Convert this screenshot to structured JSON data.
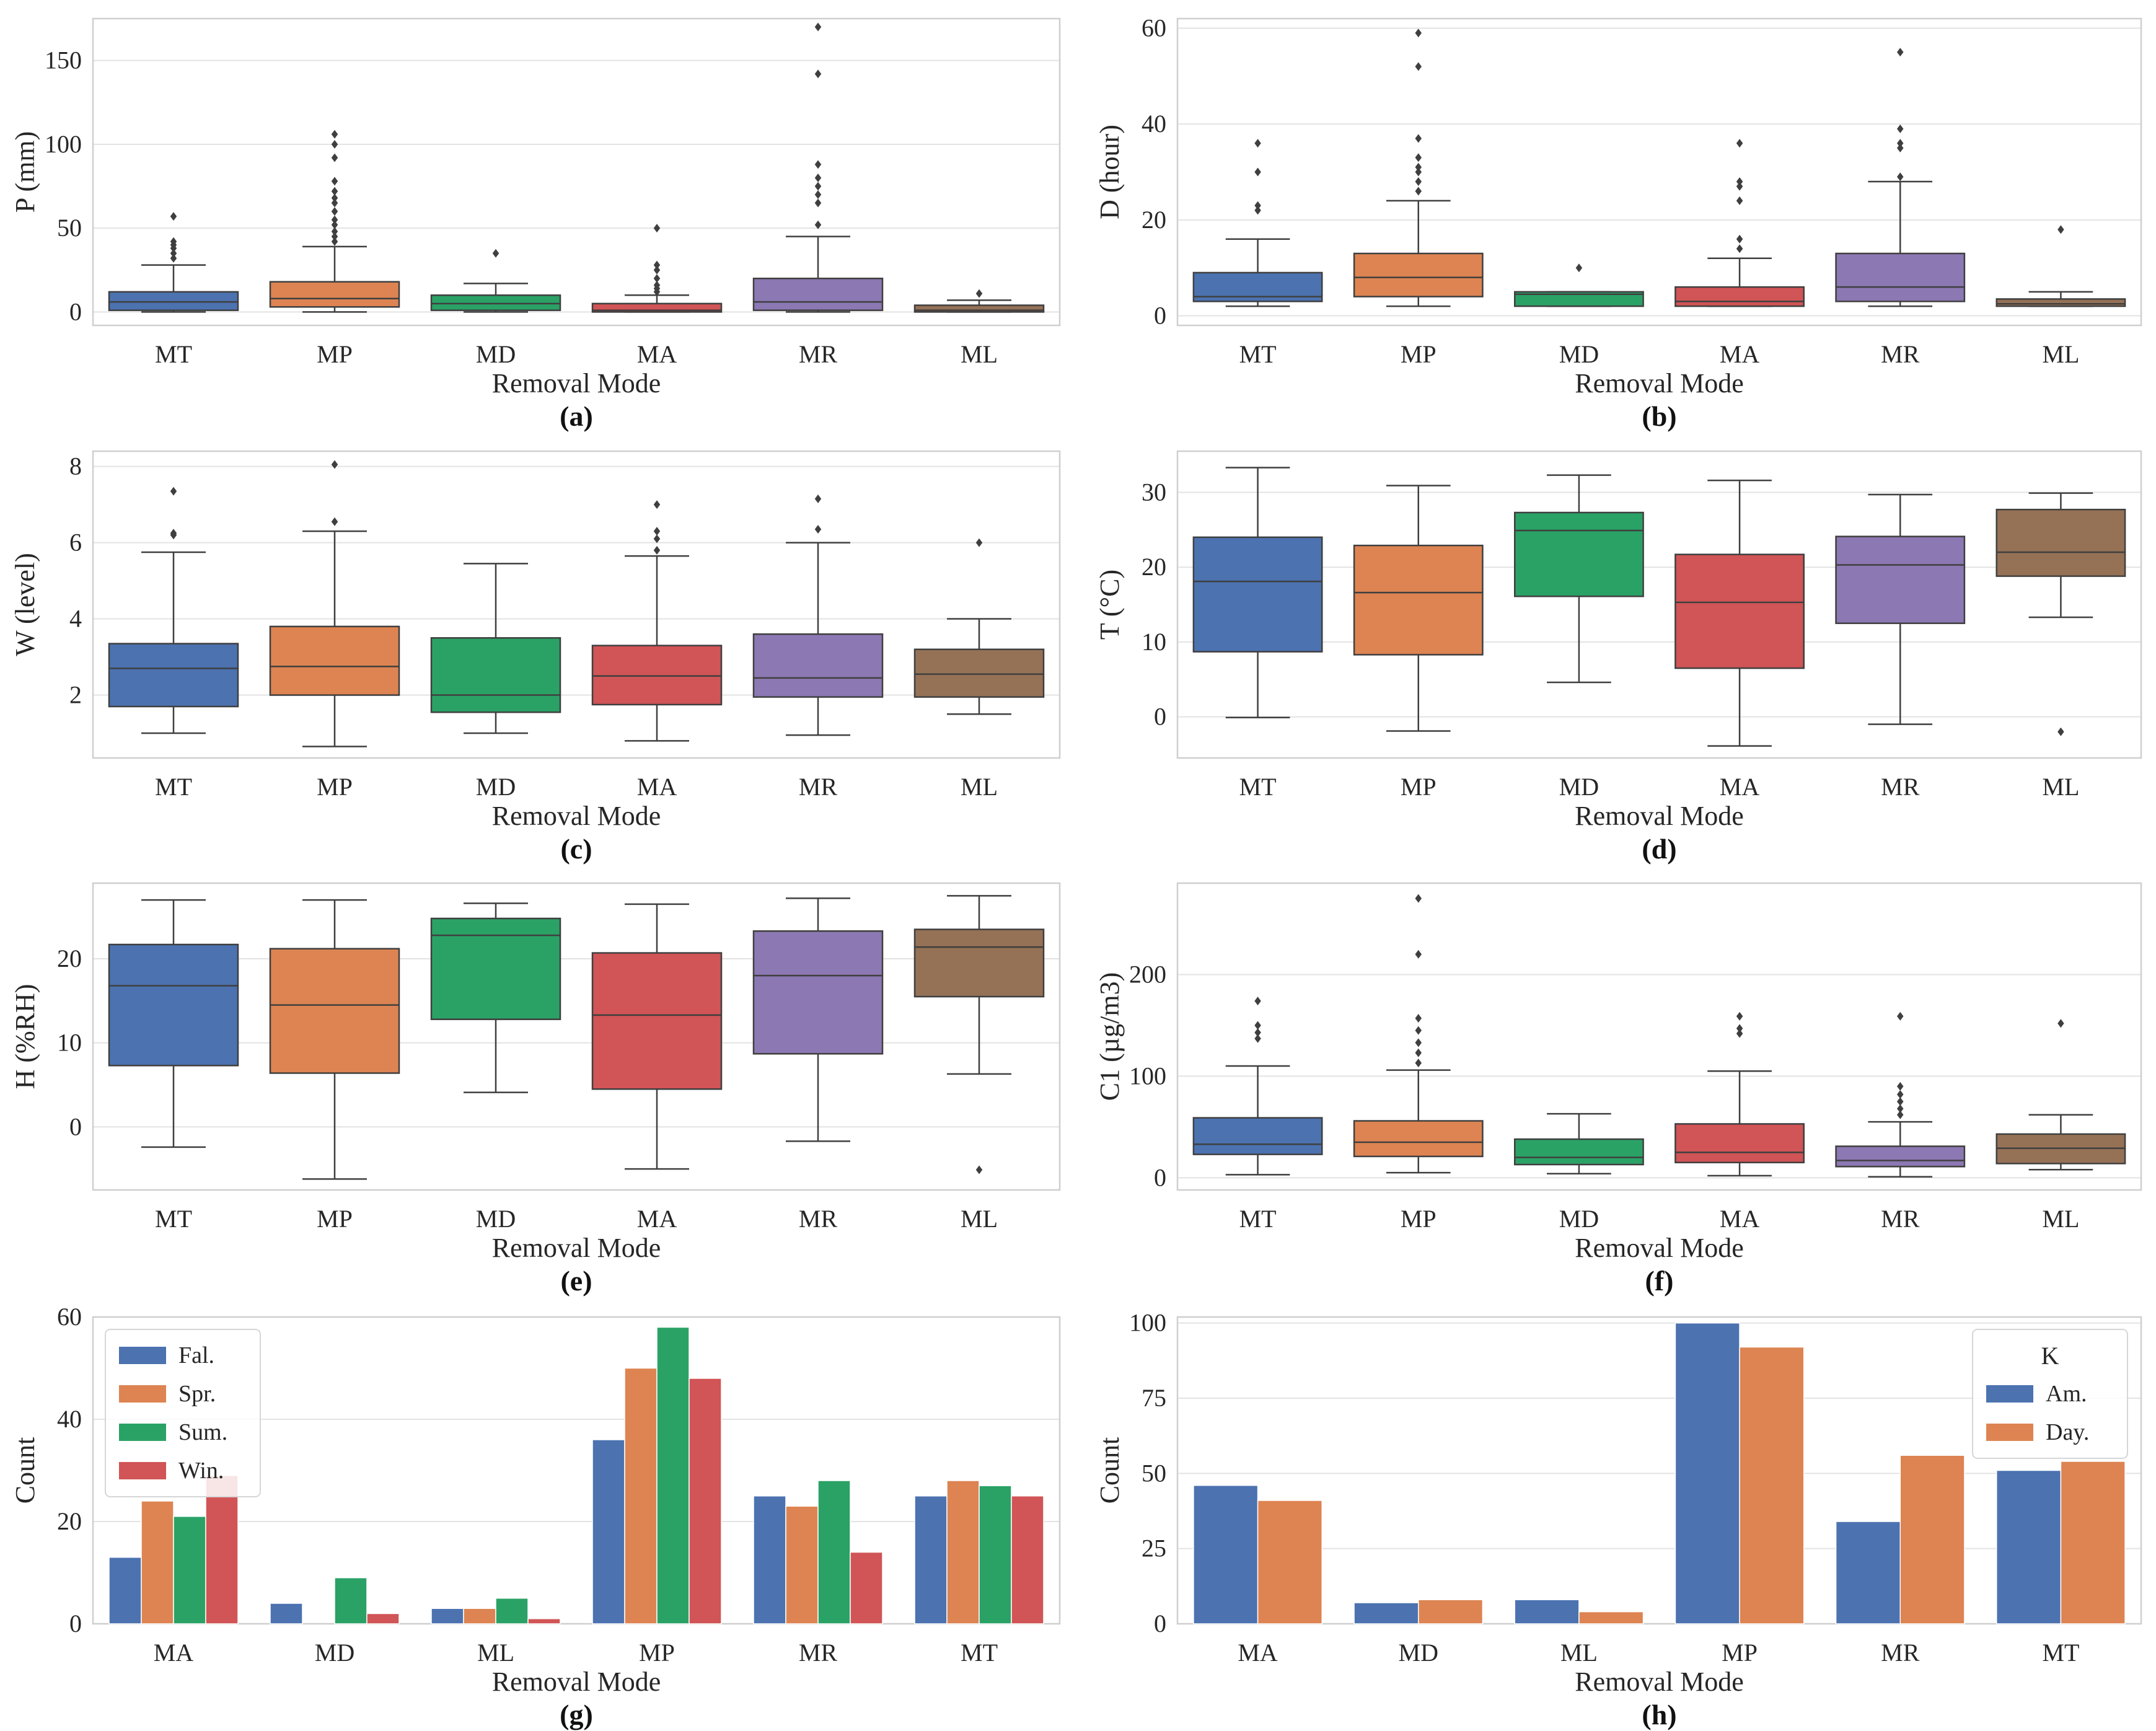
{
  "figure": {
    "xlabel": "Removal Mode"
  },
  "colors": {
    "MT": "#4c72b0",
    "MP": "#dd8452",
    "MD": "#2aa266",
    "MA": "#d15456",
    "MR": "#8c78b3",
    "ML": "#957156",
    "grid": "#e3e3e3",
    "frame": "#cfcfcf",
    "line": "#3f3f3f"
  },
  "chart_data": [
    {
      "id": "a",
      "tag": "(a)",
      "type": "box",
      "ylabel": "P (mm)",
      "xlabel": "Removal Mode",
      "ylim": [
        -8,
        175
      ],
      "yticks": [
        0,
        50,
        100,
        150
      ],
      "categories": [
        "MT",
        "MP",
        "MD",
        "MA",
        "MR",
        "ML"
      ],
      "boxes": [
        {
          "cat": "MT",
          "q1": 1,
          "median": 6,
          "q3": 12,
          "wlo": 0,
          "whi": 28,
          "outliers": [
            32,
            35,
            38,
            40,
            42,
            57
          ]
        },
        {
          "cat": "MP",
          "q1": 3,
          "median": 8,
          "q3": 18,
          "wlo": 0,
          "whi": 39,
          "outliers": [
            42,
            45,
            48,
            52,
            55,
            60,
            65,
            68,
            72,
            78,
            92,
            100,
            106
          ]
        },
        {
          "cat": "MD",
          "q1": 1,
          "median": 5,
          "q3": 10,
          "wlo": 0,
          "whi": 17,
          "outliers": [
            35
          ]
        },
        {
          "cat": "MA",
          "q1": 0,
          "median": 1,
          "q3": 5,
          "wlo": 0,
          "whi": 10,
          "outliers": [
            12,
            14,
            16,
            20,
            25,
            28,
            50
          ]
        },
        {
          "cat": "MR",
          "q1": 1,
          "median": 6,
          "q3": 20,
          "wlo": 0,
          "whi": 45,
          "outliers": [
            52,
            65,
            70,
            75,
            80,
            88,
            142,
            170
          ]
        },
        {
          "cat": "ML",
          "q1": 0,
          "median": 1,
          "q3": 4,
          "wlo": 0,
          "whi": 7,
          "outliers": [
            11
          ]
        }
      ]
    },
    {
      "id": "b",
      "tag": "(b)",
      "type": "box",
      "ylabel": "D (hour)",
      "xlabel": "Removal Mode",
      "ylim": [
        -2,
        62
      ],
      "yticks": [
        0,
        20,
        40,
        60
      ],
      "categories": [
        "MT",
        "MP",
        "MD",
        "MA",
        "MR",
        "ML"
      ],
      "boxes": [
        {
          "cat": "MT",
          "q1": 3,
          "median": 4,
          "q3": 9,
          "wlo": 2,
          "whi": 16,
          "outliers": [
            22,
            23,
            30,
            36
          ]
        },
        {
          "cat": "MP",
          "q1": 4,
          "median": 8,
          "q3": 13,
          "wlo": 2,
          "whi": 24,
          "outliers": [
            26,
            28,
            30,
            31,
            33,
            37,
            52,
            59
          ]
        },
        {
          "cat": "MD",
          "q1": 2,
          "median": 4.5,
          "q3": 5,
          "wlo": 2,
          "whi": 5,
          "outliers": [
            10
          ]
        },
        {
          "cat": "MA",
          "q1": 2,
          "median": 3,
          "q3": 6,
          "wlo": 2,
          "whi": 12,
          "outliers": [
            14,
            16,
            24,
            27,
            28,
            36
          ]
        },
        {
          "cat": "MR",
          "q1": 3,
          "median": 6,
          "q3": 13,
          "wlo": 2,
          "whi": 28,
          "outliers": [
            29,
            35,
            36,
            39,
            55
          ]
        },
        {
          "cat": "ML",
          "q1": 2,
          "median": 2.5,
          "q3": 3.5,
          "wlo": 2,
          "whi": 5,
          "outliers": [
            18
          ]
        }
      ]
    },
    {
      "id": "c",
      "tag": "(c)",
      "type": "box",
      "ylabel": "W (level)",
      "xlabel": "Removal Mode",
      "ylim": [
        0.35,
        8.4
      ],
      "yticks": [
        2,
        4,
        6,
        8
      ],
      "categories": [
        "MT",
        "MP",
        "MD",
        "MA",
        "MR",
        "ML"
      ],
      "boxes": [
        {
          "cat": "MT",
          "q1": 1.7,
          "median": 2.7,
          "q3": 3.35,
          "wlo": 1.0,
          "whi": 5.75,
          "outliers": [
            6.2,
            6.25,
            7.35
          ]
        },
        {
          "cat": "MP",
          "q1": 2.0,
          "median": 2.75,
          "q3": 3.8,
          "wlo": 0.65,
          "whi": 6.3,
          "outliers": [
            6.55,
            8.05
          ]
        },
        {
          "cat": "MD",
          "q1": 1.55,
          "median": 2.0,
          "q3": 3.5,
          "wlo": 1.0,
          "whi": 5.45,
          "outliers": []
        },
        {
          "cat": "MA",
          "q1": 1.75,
          "median": 2.5,
          "q3": 3.3,
          "wlo": 0.8,
          "whi": 5.65,
          "outliers": [
            5.8,
            6.1,
            6.3,
            7.0
          ]
        },
        {
          "cat": "MR",
          "q1": 1.95,
          "median": 2.45,
          "q3": 3.6,
          "wlo": 0.95,
          "whi": 6.0,
          "outliers": [
            6.35,
            7.15
          ]
        },
        {
          "cat": "ML",
          "q1": 1.95,
          "median": 2.55,
          "q3": 3.2,
          "wlo": 1.5,
          "whi": 4.0,
          "outliers": [
            6.0
          ]
        }
      ]
    },
    {
      "id": "d",
      "tag": "(d)",
      "type": "box",
      "ylabel": "T (°C)",
      "xlabel": "Removal Mode",
      "ylim": [
        -5.5,
        35.5
      ],
      "yticks": [
        0,
        10,
        20,
        30
      ],
      "categories": [
        "MT",
        "MP",
        "MD",
        "MA",
        "MR",
        "ML"
      ],
      "boxes": [
        {
          "cat": "MT",
          "q1": 8.7,
          "median": 18.1,
          "q3": 24.0,
          "wlo": -0.1,
          "whi": 33.3,
          "outliers": []
        },
        {
          "cat": "MP",
          "q1": 8.3,
          "median": 16.6,
          "q3": 22.9,
          "wlo": -1.9,
          "whi": 30.9,
          "outliers": []
        },
        {
          "cat": "MD",
          "q1": 16.1,
          "median": 24.9,
          "q3": 27.3,
          "wlo": 4.6,
          "whi": 32.3,
          "outliers": []
        },
        {
          "cat": "MA",
          "q1": 6.5,
          "median": 15.3,
          "q3": 21.7,
          "wlo": -3.9,
          "whi": 31.6,
          "outliers": []
        },
        {
          "cat": "MR",
          "q1": 12.5,
          "median": 20.3,
          "q3": 24.1,
          "wlo": -1.0,
          "whi": 29.7,
          "outliers": []
        },
        {
          "cat": "ML",
          "q1": 18.8,
          "median": 22.0,
          "q3": 27.7,
          "wlo": 13.3,
          "whi": 29.9,
          "outliers": [
            -2.0
          ]
        }
      ]
    },
    {
      "id": "e",
      "tag": "(e)",
      "type": "box",
      "ylabel": "H (%RH)",
      "xlabel": "Removal Mode",
      "ylim": [
        -7.5,
        29
      ],
      "yticks": [
        0,
        10,
        20
      ],
      "categories": [
        "MT",
        "MP",
        "MD",
        "MA",
        "MR",
        "ML"
      ],
      "boxes": [
        {
          "cat": "MT",
          "q1": 7.3,
          "median": 16.8,
          "q3": 21.7,
          "wlo": -2.4,
          "whi": 27.0,
          "outliers": []
        },
        {
          "cat": "MP",
          "q1": 6.4,
          "median": 14.5,
          "q3": 21.2,
          "wlo": -6.2,
          "whi": 27.0,
          "outliers": []
        },
        {
          "cat": "MD",
          "q1": 12.8,
          "median": 22.8,
          "q3": 24.8,
          "wlo": 4.1,
          "whi": 26.6,
          "outliers": []
        },
        {
          "cat": "MA",
          "q1": 4.5,
          "median": 13.3,
          "q3": 20.7,
          "wlo": -5.0,
          "whi": 26.5,
          "outliers": []
        },
        {
          "cat": "MR",
          "q1": 8.7,
          "median": 18.0,
          "q3": 23.3,
          "wlo": -1.7,
          "whi": 27.2,
          "outliers": []
        },
        {
          "cat": "ML",
          "q1": 15.5,
          "median": 21.4,
          "q3": 23.5,
          "wlo": 6.3,
          "whi": 27.5,
          "outliers": [
            -5.1
          ]
        }
      ]
    },
    {
      "id": "f",
      "tag": "(f)",
      "type": "box",
      "ylabel": "C1 (µg/m3)",
      "xlabel": "Removal Mode",
      "ylim": [
        -12,
        290
      ],
      "yticks": [
        0,
        100,
        200
      ],
      "categories": [
        "MT",
        "MP",
        "MD",
        "MA",
        "MR",
        "ML"
      ],
      "boxes": [
        {
          "cat": "MT",
          "q1": 23,
          "median": 33,
          "q3": 59,
          "wlo": 3,
          "whi": 110,
          "outliers": [
            137,
            143,
            150,
            174
          ]
        },
        {
          "cat": "MP",
          "q1": 21,
          "median": 35,
          "q3": 56,
          "wlo": 5,
          "whi": 106,
          "outliers": [
            113,
            123,
            133,
            145,
            157,
            220,
            275
          ]
        },
        {
          "cat": "MD",
          "q1": 13,
          "median": 20,
          "q3": 38,
          "wlo": 4,
          "whi": 63,
          "outliers": []
        },
        {
          "cat": "MA",
          "q1": 15,
          "median": 25,
          "q3": 53,
          "wlo": 2,
          "whi": 105,
          "outliers": [
            142,
            147,
            159
          ]
        },
        {
          "cat": "MR",
          "q1": 11,
          "median": 17,
          "q3": 31,
          "wlo": 1,
          "whi": 55,
          "outliers": [
            62,
            68,
            75,
            82,
            90,
            159
          ]
        },
        {
          "cat": "ML",
          "q1": 14,
          "median": 29,
          "q3": 43,
          "wlo": 8,
          "whi": 62,
          "outliers": [
            152
          ]
        }
      ]
    },
    {
      "id": "g",
      "tag": "(g)",
      "type": "bar",
      "ylabel": "Count",
      "xlabel": "Removal Mode",
      "ylim": [
        0,
        60
      ],
      "yticks": [
        0,
        20,
        40,
        60
      ],
      "categories": [
        "MA",
        "MD",
        "ML",
        "MP",
        "MR",
        "MT"
      ],
      "legend": {
        "title": "",
        "position": "top-left"
      },
      "series": [
        {
          "name": "Fal.",
          "color": "#4c72b0",
          "values": [
            13,
            4,
            3,
            36,
            25,
            25
          ]
        },
        {
          "name": "Spr.",
          "color": "#dd8452",
          "values": [
            24,
            0,
            3,
            50,
            23,
            28
          ]
        },
        {
          "name": "Sum.",
          "color": "#2aa266",
          "values": [
            21,
            9,
            5,
            58,
            28,
            27
          ]
        },
        {
          "name": "Win.",
          "color": "#d15456",
          "values": [
            29,
            2,
            1,
            48,
            14,
            25
          ]
        }
      ]
    },
    {
      "id": "h",
      "tag": "(h)",
      "type": "bar",
      "ylabel": "Count",
      "xlabel": "Removal Mode",
      "ylim": [
        0,
        102
      ],
      "yticks": [
        0,
        25,
        50,
        75,
        100
      ],
      "categories": [
        "MA",
        "MD",
        "ML",
        "MP",
        "MR",
        "MT"
      ],
      "legend": {
        "title": "K",
        "position": "top-right"
      },
      "series": [
        {
          "name": "Am.",
          "color": "#4c72b0",
          "values": [
            46,
            7,
            8,
            100,
            34,
            51
          ]
        },
        {
          "name": "Day.",
          "color": "#dd8452",
          "values": [
            41,
            8,
            4,
            92,
            56,
            54
          ]
        }
      ]
    }
  ]
}
